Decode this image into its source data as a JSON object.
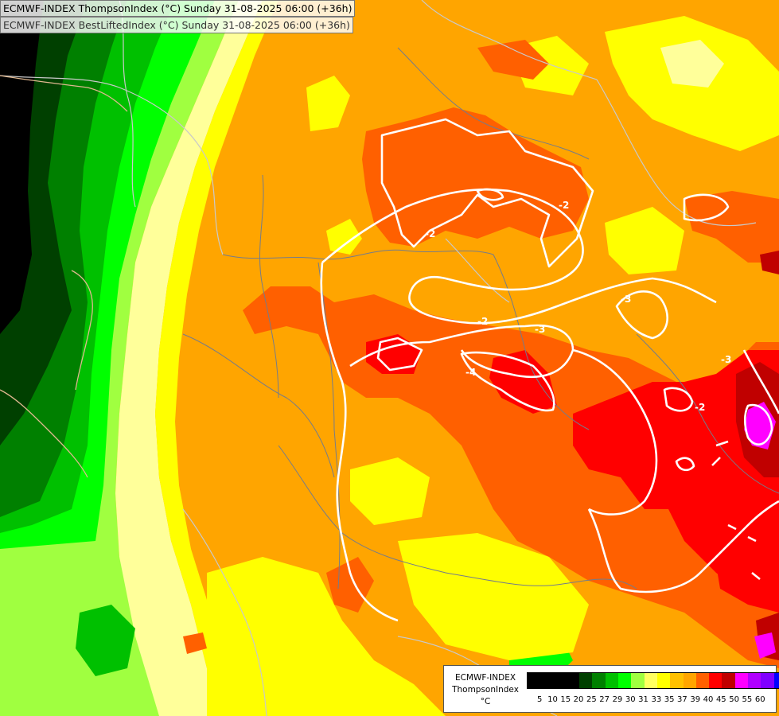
{
  "titles": {
    "line1": "ECMWF-INDEX ThompsonIndex (°C) Sunday 31-08-2025 06:00 (+36h)",
    "line2": "ECMWF-INDEX BestLiftedIndex (°C) Sunday 31-08-2025 06:00 (+36h)"
  },
  "legend": {
    "model": "ECMWF-INDEX",
    "parameter": "ThompsonIndex",
    "unit": "°C",
    "levels": [
      "5",
      "10",
      "15",
      "20",
      "25",
      "27",
      "29",
      "30",
      "31",
      "33",
      "35",
      "37",
      "39",
      "40",
      "45",
      "50",
      "55",
      "60"
    ],
    "colors": [
      "#000000",
      "#000000",
      "#000000",
      "#000000",
      "#004000",
      "#008000",
      "#00c000",
      "#00ff00",
      "#a0ff40",
      "#ffff60",
      "#ffff00",
      "#ffc000",
      "#ffa500",
      "#ff6000",
      "#ff0000",
      "#c00000",
      "#ff00ff",
      "#b000ff",
      "#8000ff",
      "#0000ff"
    ]
  },
  "contour_labels": [
    "-2",
    "-2",
    "-2",
    "-3",
    "-3",
    "-4",
    "-2",
    "-3"
  ],
  "palette": {
    "black": "#000000",
    "dark_green": "#004000",
    "green": "#008000",
    "bright_green": "#00c000",
    "lime": "#00ff00",
    "light_green": "#a0ff40",
    "pale_yellow": "#ffff9a",
    "yellow": "#ffff00",
    "orange_light": "#ffc000",
    "orange": "#ffa500",
    "dark_orange": "#ff6000",
    "red": "#ff0000",
    "dark_red": "#c00000",
    "magenta": "#ff00ff"
  }
}
